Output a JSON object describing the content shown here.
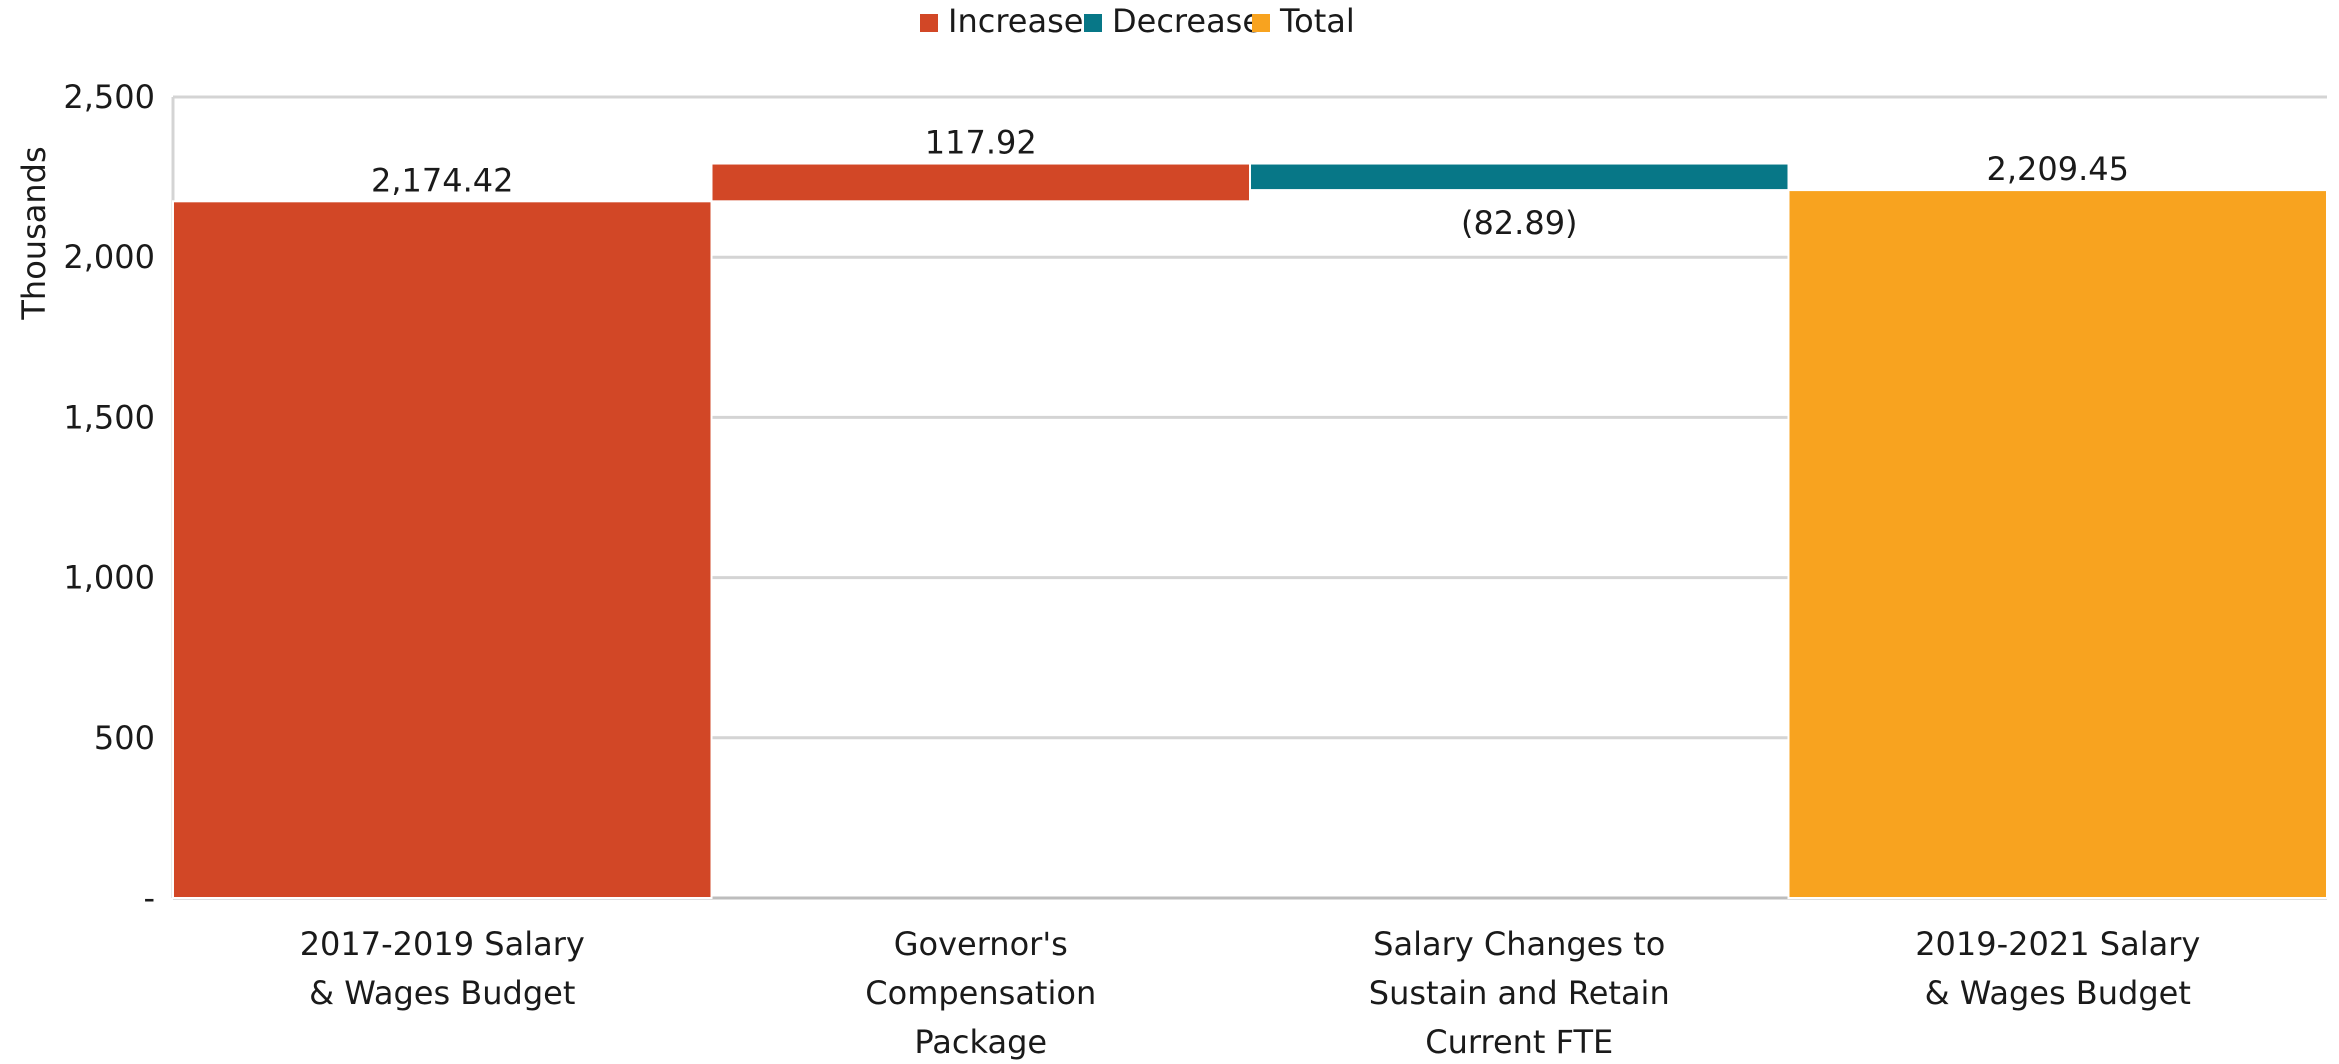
{
  "chart_data": {
    "type": "waterfall",
    "ylabel": "Thousands",
    "ylim": [
      0,
      2500
    ],
    "yticks": [
      {
        "value": 0,
        "label": "-"
      },
      {
        "value": 500,
        "label": "500"
      },
      {
        "value": 1000,
        "label": "1,000"
      },
      {
        "value": 1500,
        "label": "1,500"
      },
      {
        "value": 2000,
        "label": "2,000"
      },
      {
        "value": 2500,
        "label": "2,500"
      }
    ],
    "grid": true,
    "legend_position": "top",
    "legend": [
      {
        "name": "Increase",
        "color": "#D24726"
      },
      {
        "name": "Decrease",
        "color": "#077787"
      },
      {
        "name": "Total",
        "color": "#F8A31F"
      }
    ],
    "categories": [
      [
        "2017-2019 Salary",
        "& Wages Budget"
      ],
      [
        "Governor's",
        "Compensation",
        "Package"
      ],
      [
        "Salary Changes to",
        "Sustain and Retain",
        "Current FTE"
      ],
      [
        "2019-2021 Salary",
        "& Wages Budget"
      ]
    ],
    "bars": [
      {
        "kind": "increase",
        "start": 0,
        "end": 2174.42,
        "label": "2,174.42",
        "label_pos": "above"
      },
      {
        "kind": "increase",
        "start": 2174.42,
        "end": 2292.34,
        "label": "117.92",
        "label_pos": "above"
      },
      {
        "kind": "decrease",
        "start": 2292.34,
        "end": 2209.45,
        "label": "(82.89)",
        "label_pos": "below"
      },
      {
        "kind": "total",
        "start": 0,
        "end": 2209.45,
        "label": "2,209.45",
        "label_pos": "above"
      }
    ]
  }
}
